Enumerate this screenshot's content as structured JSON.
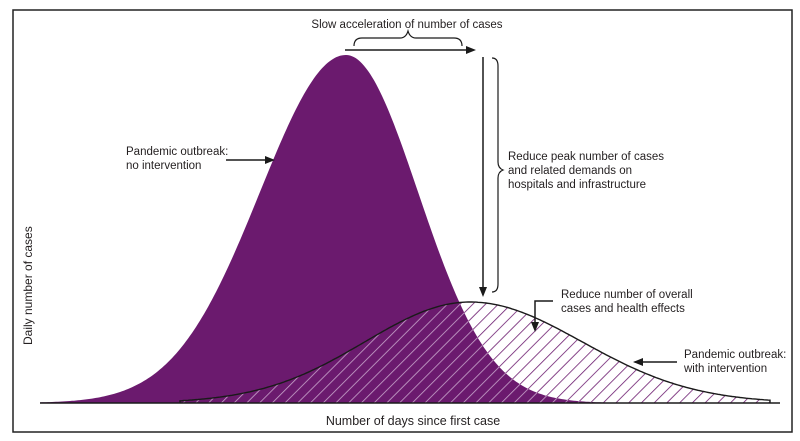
{
  "colors": {
    "purple": "#6b1a6e",
    "line": "#1a1a1a",
    "border": "#222222"
  },
  "axes": {
    "xlabel": "Number of days since first case",
    "ylabel": "Daily number of cases"
  },
  "annotations": {
    "slow_acceleration": "Slow acceleration of number of cases",
    "no_intervention": [
      "Pandemic outbreak:",
      "no intervention"
    ],
    "reduce_peak": [
      "Reduce peak number of cases",
      "and related demands on",
      "hospitals and infrastructure"
    ],
    "reduce_overall": [
      "Reduce number of overall",
      "cases and health effects"
    ],
    "with_intervention": [
      "Pandemic outbreak:",
      "with intervention"
    ]
  },
  "curves": [
    {
      "label": "no intervention",
      "style": "solid purple fill"
    },
    {
      "label": "with intervention",
      "style": "hatched, black outline"
    }
  ]
}
